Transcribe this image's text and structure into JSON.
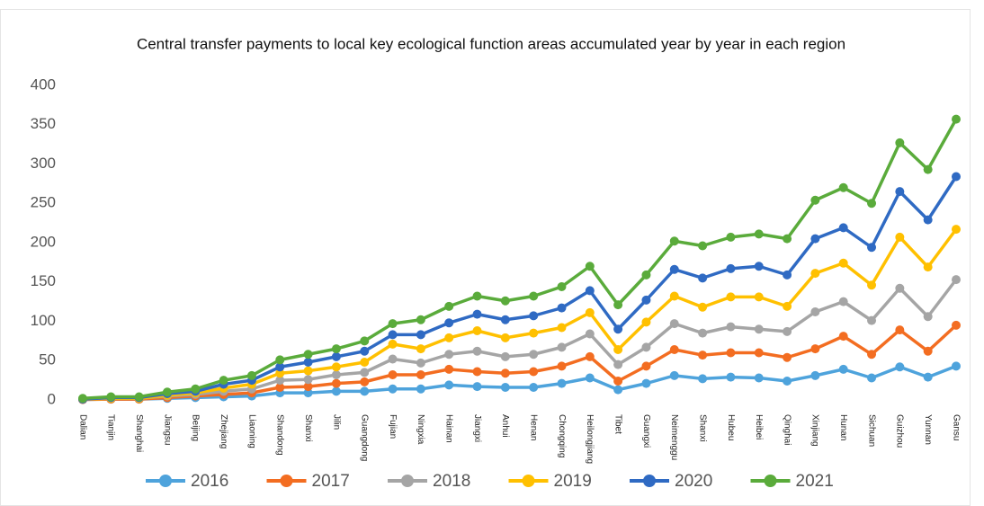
{
  "chart_data": {
    "type": "line",
    "title": "Central transfer payments to local key ecological function areas accumulated year by year in each region",
    "categories": [
      "Dalian",
      "Tianjin",
      "Shanghai",
      "Jiangsu",
      "Beijing",
      "Zhejiang",
      "Liaoning",
      "Shandong",
      "Shanxi",
      "Jilin",
      "Guangdong",
      "Fujian",
      "Ningxia",
      "Hainan",
      "Jiangxi",
      "Anhui",
      "Henan",
      "Chongqing",
      "Heilongjiang",
      "Tibet",
      "Guangxi",
      "Neimenggu",
      "Shanxi",
      "Hubeu",
      "Heibei",
      "Qinghai",
      "Xinjiang",
      "Hunan",
      "Sichuan",
      "Guizhou",
      "Yunnan",
      "Gansu"
    ],
    "series": [
      {
        "name": "2016",
        "color": "#4ea3dc",
        "values": [
          0.5,
          1,
          1,
          2,
          3,
          4,
          5,
          9,
          9,
          11,
          11,
          14,
          14,
          19,
          17,
          16,
          16,
          21,
          28,
          13,
          21,
          31,
          27,
          29,
          28,
          24,
          31,
          39,
          28,
          42,
          29,
          43
        ]
      },
      {
        "name": "2017",
        "color": "#f36d21",
        "values": [
          0.5,
          1,
          1,
          3,
          5,
          7,
          9,
          16,
          17,
          21,
          23,
          32,
          32,
          39,
          36,
          34,
          36,
          43,
          55,
          24,
          43,
          64,
          57,
          60,
          60,
          54,
          65,
          81,
          58,
          89,
          62,
          95
        ]
      },
      {
        "name": "2018",
        "color": "#a5a5a5",
        "values": [
          1,
          2,
          2,
          5,
          7,
          11,
          14,
          25,
          26,
          32,
          35,
          52,
          47,
          58,
          62,
          55,
          58,
          67,
          84,
          45,
          67,
          97,
          85,
          93,
          90,
          87,
          112,
          125,
          101,
          142,
          106,
          153
        ]
      },
      {
        "name": "2019",
        "color": "#ffc000",
        "values": [
          1,
          2,
          2,
          6,
          9,
          15,
          20,
          34,
          37,
          42,
          48,
          71,
          65,
          79,
          88,
          79,
          85,
          92,
          111,
          64,
          99,
          132,
          118,
          131,
          131,
          119,
          161,
          174,
          146,
          207,
          169,
          217
        ]
      },
      {
        "name": "2020",
        "color": "#2f6ac3",
        "values": [
          1,
          3,
          3,
          8,
          11,
          20,
          25,
          42,
          48,
          55,
          62,
          83,
          83,
          98,
          109,
          102,
          107,
          117,
          139,
          90,
          127,
          166,
          155,
          167,
          170,
          159,
          205,
          219,
          194,
          265,
          229,
          284
        ]
      },
      {
        "name": "2021",
        "color": "#5aab3b",
        "values": [
          2,
          4,
          4,
          10,
          14,
          25,
          31,
          51,
          58,
          65,
          75,
          97,
          102,
          119,
          132,
          126,
          132,
          144,
          170,
          121,
          159,
          202,
          196,
          207,
          211,
          205,
          254,
          270,
          250,
          327,
          293,
          357
        ]
      }
    ],
    "ylim": [
      0,
      400
    ],
    "yticks": [
      0,
      50,
      100,
      150,
      200,
      250,
      300,
      350,
      400
    ],
    "grid": false,
    "legend": "bottom"
  }
}
